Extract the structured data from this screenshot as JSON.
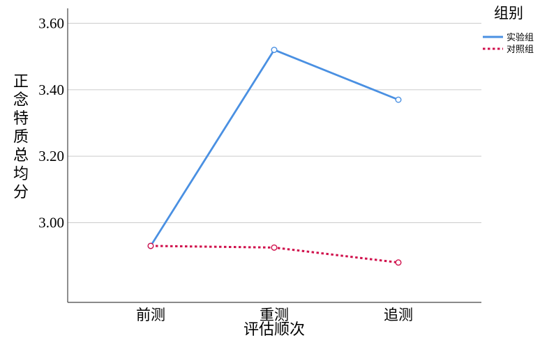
{
  "chart_data": {
    "type": "line",
    "categories": [
      "前测",
      "重测",
      "追测"
    ],
    "series": [
      {
        "name": "实验组",
        "values": [
          2.93,
          3.52,
          3.37
        ],
        "color": "#4a90e2",
        "style": "solid"
      },
      {
        "name": "对照组",
        "values": [
          2.93,
          2.925,
          2.88
        ],
        "color": "#d0104c",
        "style": "dotted"
      }
    ],
    "xlabel": "评估顺次",
    "ylabel": "正念特质总均分",
    "yticks": [
      3.0,
      3.2,
      3.4,
      3.6
    ],
    "ytick_labels": [
      "3.00",
      "3.20",
      "3.40",
      "3.60"
    ],
    "ylim": [
      2.76,
      3.645
    ],
    "grid": true,
    "legend": {
      "title": "组别",
      "position": "top-right"
    }
  }
}
